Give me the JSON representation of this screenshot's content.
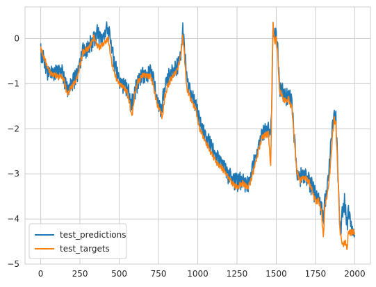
{
  "chart_data": {
    "type": "line",
    "title": "",
    "xlabel": "",
    "ylabel": "",
    "xlim": [
      -100,
      2100
    ],
    "ylim": [
      -5,
      0.7
    ],
    "grid": true,
    "legend": {
      "placement": "lower-left"
    },
    "x_ticks": [
      0,
      250,
      500,
      750,
      1000,
      1250,
      1500,
      1750,
      2000
    ],
    "y_ticks": [
      0,
      -1,
      -2,
      -3,
      -4,
      -5
    ],
    "x_tick_labels": [
      "0",
      "250",
      "500",
      "750",
      "1000",
      "1250",
      "1500",
      "1750",
      "2000"
    ],
    "y_tick_labels": [
      "0",
      "−1",
      "−2",
      "−3",
      "−4",
      "−5"
    ],
    "series": [
      {
        "name": "test_predictions",
        "color": "#1f77b4",
        "noise": 0.15,
        "points": [
          [
            0,
            -0.3
          ],
          [
            20,
            -0.5
          ],
          [
            40,
            -0.7
          ],
          [
            60,
            -0.8
          ],
          [
            80,
            -0.75
          ],
          [
            100,
            -0.7
          ],
          [
            120,
            -0.75
          ],
          [
            140,
            -0.8
          ],
          [
            160,
            -1.0
          ],
          [
            175,
            -1.15
          ],
          [
            190,
            -1.05
          ],
          [
            210,
            -0.95
          ],
          [
            230,
            -0.8
          ],
          [
            250,
            -0.55
          ],
          [
            270,
            -0.3
          ],
          [
            300,
            -0.2
          ],
          [
            320,
            -0.1
          ],
          [
            340,
            0.0
          ],
          [
            360,
            0.1
          ],
          [
            380,
            -0.05
          ],
          [
            400,
            0.0
          ],
          [
            420,
            0.2
          ],
          [
            440,
            0.1
          ],
          [
            460,
            -0.4
          ],
          [
            480,
            -0.7
          ],
          [
            500,
            -0.9
          ],
          [
            520,
            -1.0
          ],
          [
            540,
            -1.05
          ],
          [
            560,
            -1.2
          ],
          [
            575,
            -1.5
          ],
          [
            590,
            -1.35
          ],
          [
            610,
            -1.05
          ],
          [
            630,
            -0.85
          ],
          [
            650,
            -0.8
          ],
          [
            670,
            -0.9
          ],
          [
            690,
            -0.8
          ],
          [
            700,
            -0.7
          ],
          [
            720,
            -1.0
          ],
          [
            740,
            -1.4
          ],
          [
            760,
            -1.6
          ],
          [
            770,
            -1.65
          ],
          [
            780,
            -1.3
          ],
          [
            800,
            -0.95
          ],
          [
            820,
            -0.85
          ],
          [
            840,
            -0.75
          ],
          [
            860,
            -0.7
          ],
          [
            880,
            -0.5
          ],
          [
            900,
            -0.2
          ],
          [
            905,
            0.2
          ],
          [
            915,
            -0.25
          ],
          [
            930,
            -0.8
          ],
          [
            950,
            -1.2
          ],
          [
            970,
            -1.35
          ],
          [
            990,
            -1.5
          ],
          [
            1010,
            -1.8
          ],
          [
            1030,
            -2.0
          ],
          [
            1050,
            -2.2
          ],
          [
            1070,
            -2.3
          ],
          [
            1090,
            -2.45
          ],
          [
            1110,
            -2.6
          ],
          [
            1130,
            -2.7
          ],
          [
            1150,
            -2.75
          ],
          [
            1170,
            -2.85
          ],
          [
            1190,
            -3.0
          ],
          [
            1210,
            -3.1
          ],
          [
            1230,
            -3.15
          ],
          [
            1250,
            -3.2
          ],
          [
            1270,
            -3.15
          ],
          [
            1290,
            -3.15
          ],
          [
            1310,
            -3.25
          ],
          [
            1330,
            -3.15
          ],
          [
            1350,
            -2.85
          ],
          [
            1370,
            -2.65
          ],
          [
            1390,
            -2.35
          ],
          [
            1410,
            -2.15
          ],
          [
            1430,
            -2.05
          ],
          [
            1450,
            -2.0
          ],
          [
            1460,
            -2.2
          ],
          [
            1470,
            -1.8
          ],
          [
            1480,
            0.2
          ],
          [
            1490,
            0.0
          ],
          [
            1500,
            0.1
          ],
          [
            1510,
            -0.3
          ],
          [
            1520,
            -1.05
          ],
          [
            1540,
            -1.2
          ],
          [
            1560,
            -1.3
          ],
          [
            1580,
            -1.25
          ],
          [
            1600,
            -1.45
          ],
          [
            1610,
            -2.0
          ],
          [
            1620,
            -2.4
          ],
          [
            1630,
            -3.0
          ],
          [
            1650,
            -3.1
          ],
          [
            1670,
            -3.0
          ],
          [
            1690,
            -3.05
          ],
          [
            1710,
            -3.2
          ],
          [
            1730,
            -3.3
          ],
          [
            1750,
            -3.5
          ],
          [
            1770,
            -3.55
          ],
          [
            1790,
            -3.8
          ],
          [
            1800,
            -4.1
          ],
          [
            1810,
            -3.6
          ],
          [
            1830,
            -3.2
          ],
          [
            1850,
            -2.3
          ],
          [
            1860,
            -1.9
          ],
          [
            1870,
            -1.7
          ],
          [
            1880,
            -1.8
          ],
          [
            1890,
            -2.7
          ],
          [
            1900,
            -3.8
          ],
          [
            1910,
            -4.3
          ],
          [
            1920,
            -3.9
          ],
          [
            1935,
            -3.6
          ],
          [
            1950,
            -4.1
          ],
          [
            1960,
            -3.9
          ],
          [
            1970,
            -4.0
          ],
          [
            1985,
            -4.25
          ],
          [
            2000,
            -4.35
          ]
        ]
      },
      {
        "name": "test_targets",
        "color": "#ff7f0e",
        "noise": 0.05,
        "points": [
          [
            0,
            -0.2
          ],
          [
            15,
            -0.4
          ],
          [
            30,
            -0.5
          ],
          [
            50,
            -0.7
          ],
          [
            70,
            -0.8
          ],
          [
            90,
            -0.8
          ],
          [
            110,
            -0.85
          ],
          [
            130,
            -0.85
          ],
          [
            150,
            -0.95
          ],
          [
            170,
            -1.25
          ],
          [
            190,
            -1.1
          ],
          [
            210,
            -1.0
          ],
          [
            230,
            -0.9
          ],
          [
            250,
            -0.6
          ],
          [
            270,
            -0.3
          ],
          [
            290,
            -0.25
          ],
          [
            310,
            -0.2
          ],
          [
            330,
            -0.05
          ],
          [
            340,
            0.05
          ],
          [
            350,
            -0.1
          ],
          [
            370,
            -0.2
          ],
          [
            390,
            -0.15
          ],
          [
            410,
            -0.1
          ],
          [
            430,
            0.0
          ],
          [
            450,
            -0.5
          ],
          [
            470,
            -0.8
          ],
          [
            490,
            -0.95
          ],
          [
            510,
            -1.05
          ],
          [
            530,
            -1.1
          ],
          [
            550,
            -1.2
          ],
          [
            570,
            -1.5
          ],
          [
            580,
            -1.75
          ],
          [
            600,
            -1.2
          ],
          [
            620,
            -0.95
          ],
          [
            640,
            -0.85
          ],
          [
            660,
            -0.8
          ],
          [
            680,
            -0.85
          ],
          [
            700,
            -0.85
          ],
          [
            720,
            -1.1
          ],
          [
            740,
            -1.45
          ],
          [
            760,
            -1.6
          ],
          [
            775,
            -1.75
          ],
          [
            790,
            -1.3
          ],
          [
            810,
            -1.05
          ],
          [
            830,
            -0.9
          ],
          [
            850,
            -0.8
          ],
          [
            870,
            -0.7
          ],
          [
            890,
            -0.45
          ],
          [
            905,
            0.05
          ],
          [
            915,
            -0.35
          ],
          [
            930,
            -1.1
          ],
          [
            950,
            -1.3
          ],
          [
            970,
            -1.45
          ],
          [
            990,
            -1.6
          ],
          [
            1010,
            -2.0
          ],
          [
            1030,
            -2.15
          ],
          [
            1050,
            -2.3
          ],
          [
            1070,
            -2.45
          ],
          [
            1090,
            -2.55
          ],
          [
            1110,
            -2.7
          ],
          [
            1130,
            -2.8
          ],
          [
            1150,
            -2.85
          ],
          [
            1170,
            -2.95
          ],
          [
            1190,
            -3.05
          ],
          [
            1210,
            -3.15
          ],
          [
            1230,
            -3.25
          ],
          [
            1250,
            -3.3
          ],
          [
            1270,
            -3.25
          ],
          [
            1290,
            -3.2
          ],
          [
            1310,
            -3.3
          ],
          [
            1330,
            -3.25
          ],
          [
            1350,
            -3.0
          ],
          [
            1370,
            -2.75
          ],
          [
            1390,
            -2.45
          ],
          [
            1410,
            -2.2
          ],
          [
            1430,
            -2.15
          ],
          [
            1450,
            -2.1
          ],
          [
            1465,
            -2.85
          ],
          [
            1475,
            -0.5
          ],
          [
            1480,
            0.3
          ],
          [
            1490,
            -0.1
          ],
          [
            1500,
            0.0
          ],
          [
            1510,
            -0.4
          ],
          [
            1520,
            -1.15
          ],
          [
            1540,
            -1.3
          ],
          [
            1560,
            -1.4
          ],
          [
            1580,
            -1.35
          ],
          [
            1600,
            -1.55
          ],
          [
            1615,
            -2.2
          ],
          [
            1630,
            -2.9
          ],
          [
            1650,
            -3.15
          ],
          [
            1670,
            -3.1
          ],
          [
            1690,
            -3.1
          ],
          [
            1710,
            -3.2
          ],
          [
            1730,
            -3.4
          ],
          [
            1750,
            -3.6
          ],
          [
            1770,
            -3.6
          ],
          [
            1790,
            -3.9
          ],
          [
            1800,
            -4.45
          ],
          [
            1810,
            -3.7
          ],
          [
            1830,
            -3.4
          ],
          [
            1850,
            -2.6
          ],
          [
            1860,
            -2.1
          ],
          [
            1870,
            -1.8
          ],
          [
            1880,
            -1.9
          ],
          [
            1895,
            -3.2
          ],
          [
            1905,
            -4.2
          ],
          [
            1915,
            -4.5
          ],
          [
            1925,
            -4.6
          ],
          [
            1940,
            -4.5
          ],
          [
            1950,
            -4.7
          ],
          [
            1960,
            -4.3
          ],
          [
            1975,
            -4.3
          ],
          [
            2000,
            -4.3
          ]
        ]
      }
    ]
  }
}
